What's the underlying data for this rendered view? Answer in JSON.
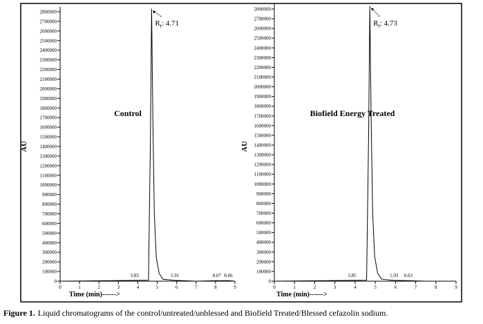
{
  "chart_data": [
    {
      "type": "line",
      "annotation": "Control",
      "xlabel": "Time (min)------>",
      "ylabel": "AU",
      "retention_label": {
        "symbol": "R",
        "subscript": "t",
        "value_text": ": 4.71"
      },
      "x": [
        0,
        3.83,
        4.55,
        4.65,
        4.71,
        4.78,
        4.85,
        4.95,
        5.1,
        5.3,
        5.91,
        7,
        8.07,
        8.66,
        9
      ],
      "series": [
        {
          "color": "#000000",
          "values": [
            0,
            8000,
            10000,
            1500000,
            2830000,
            1600000,
            700000,
            250000,
            80000,
            20000,
            8000,
            0,
            5000,
            5000,
            0
          ]
        }
      ],
      "peak_labels": [
        3.83,
        5.91,
        8.07,
        8.66
      ],
      "xlim": [
        0,
        9
      ],
      "xticks": [
        0,
        1,
        2,
        3,
        4,
        5,
        6,
        7,
        8,
        9
      ],
      "ylim": [
        0,
        2850000
      ],
      "yticks": [
        0,
        100000,
        200000,
        300000,
        400000,
        500000,
        600000,
        700000,
        800000,
        900000,
        1000000,
        1100000,
        1200000,
        1300000,
        1400000,
        1500000,
        1600000,
        1700000,
        1800000,
        1900000,
        2000000,
        2100000,
        2200000,
        2300000,
        2400000,
        2500000,
        2600000,
        2700000,
        2800000
      ]
    },
    {
      "type": "line",
      "annotation": "Biofield Energy Treated",
      "xlabel": "Time (min)------>",
      "ylabel": "AU",
      "retention_label": {
        "symbol": "R",
        "subscript": "t",
        "value_text": ": 4.73"
      },
      "x": [
        0,
        3.85,
        4.57,
        4.67,
        4.73,
        4.8,
        4.87,
        4.97,
        5.12,
        5.32,
        5.93,
        6.63,
        7.5,
        9
      ],
      "series": [
        {
          "color": "#000000",
          "values": [
            0,
            8000,
            10000,
            1500000,
            2830000,
            1600000,
            700000,
            250000,
            80000,
            20000,
            8000,
            5000,
            0,
            0
          ]
        }
      ],
      "peak_labels": [
        3.85,
        5.93,
        6.63
      ],
      "xlim": [
        0,
        9
      ],
      "xticks": [
        0,
        1,
        2,
        3,
        4,
        5,
        6,
        7,
        8,
        9
      ],
      "ylim": [
        0,
        2850000
      ],
      "yticks": [
        0,
        100000,
        200000,
        300000,
        400000,
        500000,
        600000,
        700000,
        800000,
        900000,
        1000000,
        1100000,
        1200000,
        1300000,
        1400000,
        1500000,
        1600000,
        1700000,
        1800000,
        1900000,
        2000000,
        2100000,
        2200000,
        2300000,
        2400000,
        2500000,
        2600000,
        2700000,
        2800000
      ]
    }
  ],
  "caption": {
    "label": "Figure 1.",
    "text": "Liquid chromatograms of the control/untreated/unblessed and Biofield Treated/Blessed cefazolin sodium."
  }
}
